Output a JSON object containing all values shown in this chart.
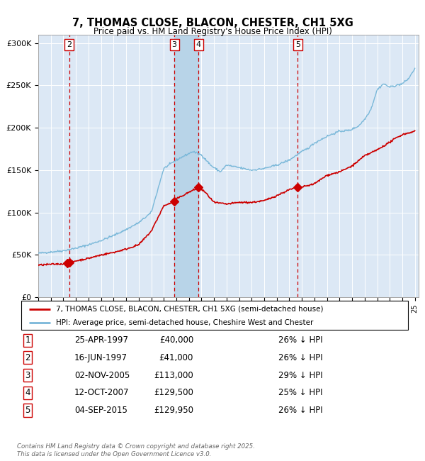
{
  "title": "7, THOMAS CLOSE, BLACON, CHESTER, CH1 5XG",
  "subtitle": "Price paid vs. HM Land Registry's House Price Index (HPI)",
  "background_color": "#ffffff",
  "chart_bg": "#dce8f5",
  "grid_color": "#ffffff",
  "hpi_line_color": "#7ab8d9",
  "price_line_color": "#cc0000",
  "marker_color": "#cc0000",
  "vline_color": "#cc0000",
  "yticks": [
    0,
    50000,
    100000,
    150000,
    200000,
    250000,
    300000
  ],
  "ytick_labels": [
    "£0",
    "£50K",
    "£100K",
    "£150K",
    "£200K",
    "£250K",
    "£300K"
  ],
  "transactions": [
    {
      "num": 1,
      "date": "25-APR-1997",
      "year": 1997.32,
      "price": 40000,
      "pct": "26%",
      "label": "1"
    },
    {
      "num": 2,
      "date": "16-JUN-1997",
      "year": 1997.46,
      "price": 41000,
      "pct": "26%",
      "label": "2"
    },
    {
      "num": 3,
      "date": "02-NOV-2005",
      "year": 2005.84,
      "price": 113000,
      "pct": "29%",
      "label": "3"
    },
    {
      "num": 4,
      "date": "12-OCT-2007",
      "year": 2007.78,
      "price": 129500,
      "pct": "25%",
      "label": "4"
    },
    {
      "num": 5,
      "date": "04-SEP-2015",
      "year": 2015.67,
      "price": 129950,
      "pct": "26%",
      "label": "5"
    }
  ],
  "legend_line1": "7, THOMAS CLOSE, BLACON, CHESTER, CH1 5XG (semi-detached house)",
  "legend_line2": "HPI: Average price, semi-detached house, Cheshire West and Chester",
  "table_rows": [
    [
      "1",
      "25-APR-1997",
      "£40,000",
      "26% ↓ HPI"
    ],
    [
      "2",
      "16-JUN-1997",
      "£41,000",
      "26% ↓ HPI"
    ],
    [
      "3",
      "02-NOV-2005",
      "£113,000",
      "29% ↓ HPI"
    ],
    [
      "4",
      "12-OCT-2007",
      "£129,500",
      "25% ↓ HPI"
    ],
    [
      "5",
      "04-SEP-2015",
      "£129,950",
      "26% ↓ HPI"
    ]
  ],
  "footnote": "Contains HM Land Registry data © Crown copyright and database right 2025.\nThis data is licensed under the Open Government Licence v3.0."
}
